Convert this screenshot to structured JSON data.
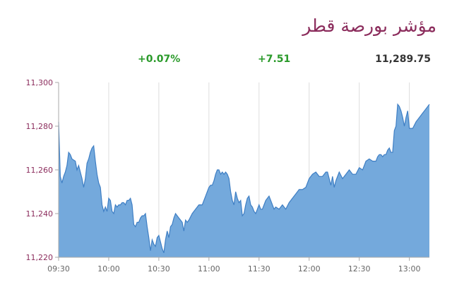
{
  "header": {
    "title": "مؤشر بورصة قطر",
    "change_percent": "+0.07%",
    "change_points": "+7.51",
    "last_value": "11,289.75"
  },
  "colors": {
    "title": "#8b2c5c",
    "positive": "#2a9a2a",
    "area_fill": "#74a9dc",
    "area_line": "#3f7fc4"
  },
  "chart_data": {
    "type": "area",
    "title": "مؤشر بورصة قطر",
    "xlabel": "",
    "ylabel": "",
    "ylim": [
      11220,
      11300
    ],
    "yticks": [
      "11,220",
      "11,240",
      "11,260",
      "11,280",
      "11,300"
    ],
    "yticks_values": [
      11220,
      11240,
      11260,
      11280,
      11300
    ],
    "xlim": [
      "09:30",
      "13:12"
    ],
    "xticks": [
      "09:30",
      "10:00",
      "10:30",
      "11:00",
      "11:30",
      "12:00",
      "12:30",
      "13:00"
    ],
    "grid": "vertical",
    "series": [
      {
        "x": [
          "09:30",
          "09:31",
          "09:32",
          "09:33",
          "09:34",
          "09:35",
          "09:36",
          "09:37",
          "09:38",
          "09:40",
          "09:41",
          "09:42",
          "09:44",
          "09:45",
          "09:46",
          "09:47",
          "09:48",
          "09:49",
          "09:50",
          "09:51",
          "09:52",
          "09:53",
          "09:54",
          "09:55",
          "09:56",
          "09:57",
          "09:58",
          "09:59",
          "10:00",
          "10:01",
          "10:02",
          "10:03",
          "10:04",
          "10:05",
          "10:06",
          "10:07",
          "10:08",
          "10:09",
          "10:10",
          "10:11",
          "10:12",
          "10:13",
          "10:14",
          "10:15",
          "10:16",
          "10:17",
          "10:18",
          "10:19",
          "10:20",
          "10:21",
          "10:22",
          "10:23",
          "10:24",
          "10:25",
          "10:26",
          "10:27",
          "10:28",
          "10:29",
          "10:30",
          "10:31",
          "10:32",
          "10:33",
          "10:34",
          "10:35",
          "10:36",
          "10:37",
          "10:38",
          "10:39",
          "10:40",
          "10:42",
          "10:44",
          "10:45",
          "10:46",
          "10:47",
          "10:48",
          "10:50",
          "10:52",
          "10:54",
          "10:56",
          "10:57",
          "10:58",
          "10:59",
          "11:00",
          "11:01",
          "11:02",
          "11:03",
          "11:04",
          "11:05",
          "11:06",
          "11:07",
          "11:08",
          "11:09",
          "11:10",
          "11:11",
          "11:12",
          "11:13",
          "11:14",
          "11:15",
          "11:16",
          "11:17",
          "11:18",
          "11:19",
          "11:20",
          "11:21",
          "11:22",
          "11:23",
          "11:24",
          "11:25",
          "11:26",
          "11:27",
          "11:28",
          "11:29",
          "11:30",
          "11:31",
          "11:32",
          "11:33",
          "11:34",
          "11:35",
          "11:36",
          "11:37",
          "11:38",
          "11:39",
          "11:40",
          "11:42",
          "11:44",
          "11:46",
          "11:48",
          "11:50",
          "11:52",
          "11:54",
          "11:56",
          "11:58",
          "12:00",
          "12:02",
          "12:04",
          "12:06",
          "12:08",
          "12:10",
          "12:11",
          "12:12",
          "12:13",
          "12:14",
          "12:15",
          "12:16",
          "12:18",
          "12:20",
          "12:22",
          "12:24",
          "12:26",
          "12:28",
          "12:30",
          "12:32",
          "12:34",
          "12:36",
          "12:38",
          "12:40",
          "12:41",
          "12:42",
          "12:43",
          "12:44",
          "12:45",
          "12:46",
          "12:47",
          "12:48",
          "12:49",
          "12:50",
          "12:51",
          "12:52",
          "12:53",
          "12:54",
          "12:55",
          "12:56",
          "12:57",
          "12:58",
          "12:59",
          "13:00",
          "13:02",
          "13:04",
          "13:06",
          "13:08",
          "13:10",
          "13:12"
        ],
        "values": [
          11282,
          11257,
          11254,
          11257,
          11259,
          11262,
          11268,
          11267,
          11265,
          11264,
          11260,
          11262,
          11256,
          11252,
          11256,
          11263,
          11265,
          11268,
          11270,
          11271,
          11264,
          11258,
          11254,
          11252,
          11244,
          11241,
          11243,
          11241,
          11247,
          11246,
          11241,
          11240,
          11244,
          11243,
          11244,
          11244,
          11245,
          11245,
          11244,
          11246,
          11246,
          11247,
          11244,
          11235,
          11234,
          11236,
          11236,
          11238,
          11239,
          11239,
          11240,
          11234,
          11229,
          11223,
          11228,
          11226,
          11225,
          11229,
          11230,
          11227,
          11224,
          11222,
          11228,
          11232,
          11229,
          11234,
          11235,
          11238,
          11240,
          11238,
          11236,
          11232,
          11237,
          11236,
          11237,
          11240,
          11242,
          11244,
          11244,
          11246,
          11248,
          11250,
          11252,
          11253,
          11253,
          11255,
          11258,
          11260,
          11260,
          11258,
          11259,
          11258,
          11259,
          11258,
          11256,
          11250,
          11246,
          11244,
          11250,
          11247,
          11245,
          11246,
          11239,
          11240,
          11244,
          11247,
          11248,
          11244,
          11243,
          11241,
          11240,
          11242,
          11244,
          11242,
          11242,
          11244,
          11246,
          11247,
          11248,
          11246,
          11244,
          11242,
          11243,
          11242,
          11244,
          11242,
          11245,
          11247,
          11249,
          11251,
          11251,
          11252,
          11256,
          11258,
          11259,
          11257,
          11257,
          11259,
          11259,
          11256,
          11253,
          11257,
          11252,
          11255,
          11259,
          11256,
          11258,
          11260,
          11258,
          11258,
          11261,
          11260,
          11264,
          11265,
          11264,
          11264,
          11266,
          11267,
          11267,
          11266,
          11267,
          11267,
          11269,
          11270,
          11268,
          11268,
          11278,
          11280,
          11290,
          11289,
          11287,
          11284,
          11280,
          11284,
          11287,
          11279,
          11279,
          11282,
          11284,
          11286,
          11288,
          11290
        ]
      }
    ]
  }
}
